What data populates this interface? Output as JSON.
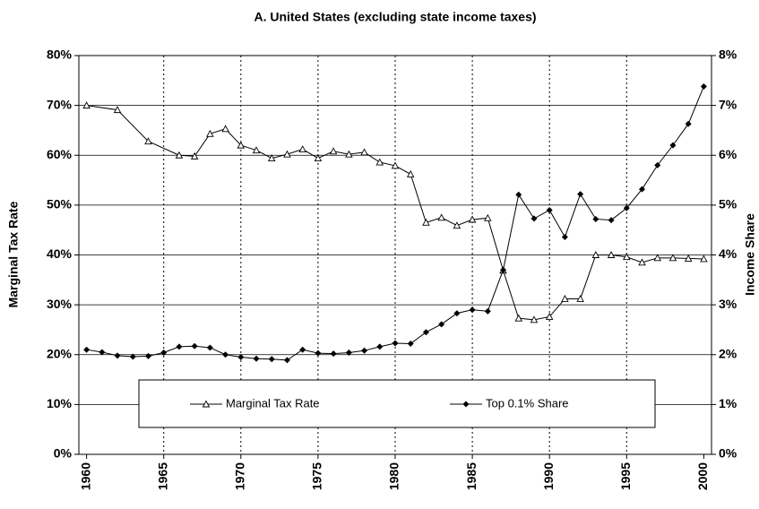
{
  "chart_data": {
    "type": "line",
    "title": "A. United States (excluding state income taxes)",
    "ylabel": "Marginal Tax Rate",
    "y2label": "Income Share",
    "xlim": [
      1959.5,
      2000.5
    ],
    "xticks": [
      1960,
      1965,
      1970,
      1975,
      1980,
      1985,
      1990,
      1995,
      2000
    ],
    "xgrid": [
      1965,
      1970,
      1975,
      1980,
      1985,
      1990,
      1995
    ],
    "ylim": [
      0,
      80
    ],
    "yticks": [
      {
        "value": 0,
        "label": "0%"
      },
      {
        "value": 10,
        "label": "10%"
      },
      {
        "value": 20,
        "label": "20%"
      },
      {
        "value": 30,
        "label": "30%"
      },
      {
        "value": 40,
        "label": "40%"
      },
      {
        "value": 50,
        "label": "50%"
      },
      {
        "value": 60,
        "label": "60%"
      },
      {
        "value": 70,
        "label": "70%"
      },
      {
        "value": 80,
        "label": "80%"
      }
    ],
    "y2lim": [
      0,
      8
    ],
    "y2ticks": [
      {
        "value": 0,
        "label": "0%"
      },
      {
        "value": 1,
        "label": "1%"
      },
      {
        "value": 2,
        "label": "2%"
      },
      {
        "value": 3,
        "label": "3%"
      },
      {
        "value": 4,
        "label": "4%"
      },
      {
        "value": 5,
        "label": "5%"
      },
      {
        "value": 6,
        "label": "6%"
      },
      {
        "value": 7,
        "label": "7%"
      },
      {
        "value": 8,
        "label": "8%"
      }
    ],
    "grid": true,
    "series": [
      {
        "name": "Marginal Tax Rate",
        "color": "#000000",
        "marker": "triangle",
        "x": [
          1960,
          1962,
          1964,
          1966,
          1967,
          1968,
          1969,
          1970,
          1971,
          1972,
          1973,
          1974,
          1975,
          1976,
          1977,
          1978,
          1979,
          1980,
          1981,
          1982,
          1983,
          1984,
          1985,
          1986,
          1987,
          1988,
          1989,
          1990,
          1991,
          1992,
          1993,
          1994,
          1995,
          1996,
          1997,
          1998,
          1999,
          2000
        ],
        "values": [
          70,
          69.1,
          62.8,
          60,
          59.8,
          64.3,
          65.3,
          62,
          61,
          59.4,
          60.2,
          61.2,
          59.4,
          60.8,
          60.2,
          60.6,
          58.6,
          57.9,
          56.2,
          46.5,
          47.5,
          45.9,
          47.1,
          47.4,
          36.9,
          27.3,
          27,
          27.6,
          31.2,
          31.2,
          40,
          40,
          39.6,
          38.5,
          39.4,
          39.4,
          39.3,
          39.2
        ]
      },
      {
        "name": "Top 0.1% Share",
        "color": "#000000",
        "marker": "diamond",
        "axis": "y2",
        "x": [
          1960,
          1961,
          1962,
          1963,
          1964,
          1965,
          1966,
          1967,
          1968,
          1969,
          1970,
          1971,
          1972,
          1973,
          1974,
          1975,
          1976,
          1977,
          1978,
          1979,
          1980,
          1981,
          1982,
          1983,
          1984,
          1985,
          1986,
          1987,
          1988,
          1989,
          1990,
          1991,
          1992,
          1993,
          1994,
          1995,
          1996,
          1997,
          1998,
          1999,
          2000
        ],
        "values": [
          2.1,
          2.05,
          1.98,
          1.96,
          1.97,
          2.04,
          2.16,
          2.17,
          2.14,
          2.0,
          1.95,
          1.92,
          1.91,
          1.89,
          2.1,
          2.03,
          2.02,
          2.04,
          2.08,
          2.16,
          2.23,
          2.22,
          2.45,
          2.61,
          2.83,
          2.9,
          2.87,
          3.7,
          5.21,
          4.73,
          4.9,
          4.36,
          5.22,
          4.72,
          4.7,
          4.94,
          5.32,
          5.8,
          6.2,
          6.63,
          7.38
        ]
      }
    ]
  }
}
